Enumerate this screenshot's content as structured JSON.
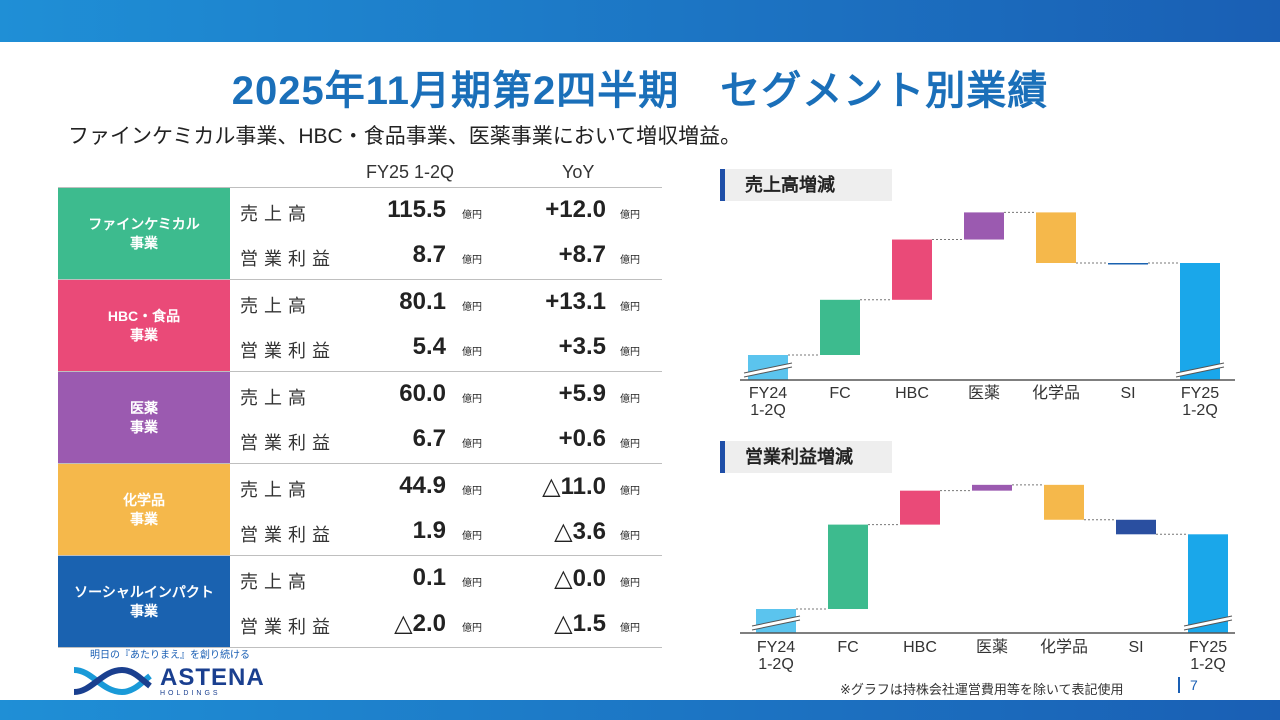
{
  "header": {
    "title": "2025年11月期第2四半期　セグメント別業績",
    "subtitle": "ファインケミカル事業、HBC・食品事業、医薬事業において増収増益。"
  },
  "table": {
    "col_period": "FY25 1-2Q",
    "col_yoy": "YoY",
    "unit": "億円",
    "segments": [
      {
        "name": "ファインケミカル\n事業",
        "color": "#3dbb8e",
        "rows": [
          {
            "label": "売上高",
            "value": "115.5",
            "yoy": "+12.0"
          },
          {
            "label": "営業利益",
            "value": "8.7",
            "yoy": "+8.7"
          }
        ]
      },
      {
        "name": "HBC・食品\n事業",
        "color": "#ea4a78",
        "rows": [
          {
            "label": "売上高",
            "value": "80.1",
            "yoy": "+13.1"
          },
          {
            "label": "営業利益",
            "value": "5.4",
            "yoy": "+3.5"
          }
        ]
      },
      {
        "name": "医薬\n事業",
        "color": "#9b5ab0",
        "rows": [
          {
            "label": "売上高",
            "value": "60.0",
            "yoy": "+5.9"
          },
          {
            "label": "営業利益",
            "value": "6.7",
            "yoy": "+0.6"
          }
        ]
      },
      {
        "name": "化学品\n事業",
        "color": "#f5b84b",
        "rows": [
          {
            "label": "売上高",
            "value": "44.9",
            "yoy": "△11.0"
          },
          {
            "label": "営業利益",
            "value": "1.9",
            "yoy": "△3.6"
          }
        ]
      },
      {
        "name": "ソーシャルインパクト\n事業",
        "color": "#1a62b0",
        "rows": [
          {
            "label": "売上高",
            "value": "0.1",
            "yoy": "△0.0"
          },
          {
            "label": "営業利益",
            "value": "△2.0",
            "yoy": "△1.5"
          }
        ]
      }
    ]
  },
  "chart_data": [
    {
      "type": "bar",
      "title": "売上高増減",
      "categories": [
        "FY24\n1-2Q",
        "FC",
        "HBC",
        "医薬",
        "化学品",
        "SI",
        "FY25\n1-2Q"
      ],
      "values": [
        null,
        12.0,
        13.1,
        5.9,
        -11.0,
        0.0,
        null
      ],
      "colors": [
        "#5bc4ee",
        "#3dbb8e",
        "#ea4a78",
        "#9b5ab0",
        "#f5b84b",
        "#1a62b0",
        "#1aa7ea"
      ]
    },
    {
      "type": "bar",
      "title": "営業利益増減",
      "categories": [
        "FY24\n1-2Q",
        "FC",
        "HBC",
        "医薬",
        "化学品",
        "SI",
        "FY25\n1-2Q"
      ],
      "values": [
        null,
        8.7,
        3.5,
        0.6,
        -3.6,
        -1.5,
        null
      ],
      "colors": [
        "#5bc4ee",
        "#3dbb8e",
        "#ea4a78",
        "#9b5ab0",
        "#f5b84b",
        "#2a4fa0",
        "#1aa7ea"
      ]
    }
  ],
  "footer": {
    "tagline": "明日の『あたりまえ』を創り続ける",
    "brand": "ASTENA",
    "brand_sub": "HOLDINGS",
    "footnote": "※グラフは持株会社運営費用等を除いて表記使用",
    "page": "7"
  }
}
